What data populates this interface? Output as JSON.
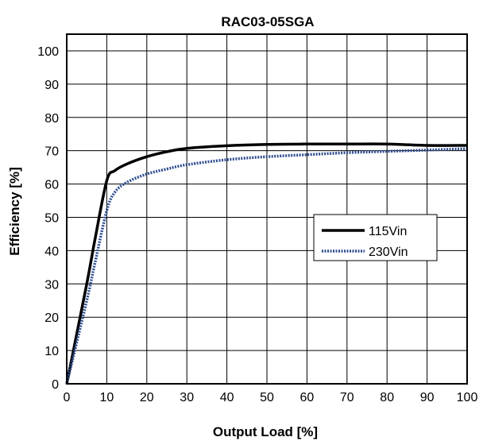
{
  "chart_data": {
    "type": "line",
    "title": "RAC03-05SGA",
    "xlabel": "Output Load [%]",
    "ylabel": "Efficiency [%]",
    "xlim": [
      0,
      100
    ],
    "ylim": [
      0,
      105
    ],
    "xticks": [
      0,
      10,
      20,
      30,
      40,
      50,
      60,
      70,
      80,
      90,
      100
    ],
    "yticks": [
      0,
      10,
      20,
      30,
      40,
      50,
      60,
      70,
      80,
      90,
      100
    ],
    "grid": true,
    "legend_position": "right-middle",
    "series": [
      {
        "name": "115Vin",
        "color": "#000000",
        "style": "solid",
        "x": [
          0,
          5,
          7,
          10,
          12,
          15,
          20,
          25,
          30,
          40,
          50,
          60,
          70,
          80,
          90,
          100
        ],
        "y": [
          0,
          30,
          43,
          61,
          64,
          66,
          68.2,
          69.7,
          70.7,
          71.5,
          71.9,
          72,
          72,
          72,
          71.6,
          71.6
        ]
      },
      {
        "name": "230Vin",
        "color": "#2e4d8f",
        "style": "dotted",
        "x": [
          0,
          5,
          7,
          10,
          12,
          15,
          20,
          25,
          30,
          40,
          50,
          60,
          70,
          80,
          90,
          100
        ],
        "y": [
          0,
          25,
          36,
          52,
          57.5,
          60.5,
          63,
          64.5,
          65.8,
          67.3,
          68.2,
          68.8,
          69.4,
          69.8,
          70.2,
          70.6
        ]
      }
    ]
  }
}
